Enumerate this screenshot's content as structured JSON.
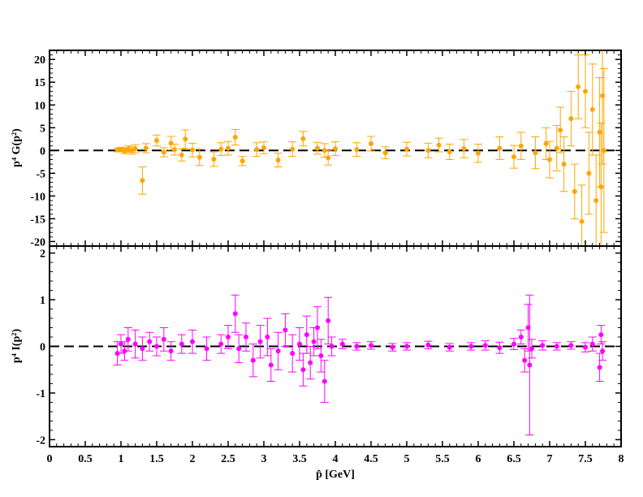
{
  "chart_data": [
    {
      "type": "scatter",
      "title": "",
      "ylabel": "p⁴ G(p²)",
      "xlim": [
        0,
        8
      ],
      "ylim": [
        -21,
        22
      ],
      "xticks": [
        0,
        0.5,
        1,
        1.5,
        2,
        2.5,
        3,
        3.5,
        4,
        4.5,
        5,
        5.5,
        6,
        6.5,
        7,
        7.5,
        8
      ],
      "xtick_labels": [],
      "yticks": [
        -20,
        -15,
        -10,
        -5,
        0,
        5,
        10,
        15,
        20
      ],
      "ytick_labels": [
        "-20",
        "-15",
        "-10",
        "-5",
        "0",
        "5",
        "10",
        "15",
        "20"
      ],
      "reference_line": {
        "y": 0,
        "style": "dashed",
        "color": "#000000"
      },
      "series": [
        {
          "color": "#ffa500",
          "points": [
            [
              0.95,
              0.1,
              0.4
            ],
            [
              1.0,
              0.2,
              0.5
            ],
            [
              1.05,
              -0.1,
              0.6
            ],
            [
              1.1,
              0.3,
              0.7
            ],
            [
              1.15,
              0.0,
              0.8
            ],
            [
              1.2,
              0.4,
              0.9
            ],
            [
              1.3,
              -6.6,
              3.0
            ],
            [
              1.35,
              0.5,
              1.0
            ],
            [
              1.5,
              2.2,
              1.2
            ],
            [
              1.6,
              -0.4,
              1.0
            ],
            [
              1.7,
              1.6,
              1.5
            ],
            [
              1.75,
              0.2,
              1.2
            ],
            [
              1.85,
              -1.0,
              1.3
            ],
            [
              1.9,
              2.5,
              2.0
            ],
            [
              2.0,
              0.1,
              1.5
            ],
            [
              2.1,
              -1.5,
              1.8
            ],
            [
              2.3,
              -1.9,
              1.6
            ],
            [
              2.4,
              0.3,
              1.4
            ],
            [
              2.5,
              0.5,
              1.5
            ],
            [
              2.6,
              2.9,
              1.7
            ],
            [
              2.7,
              -2.3,
              1.0
            ],
            [
              2.9,
              0.2,
              1.5
            ],
            [
              3.0,
              0.6,
              1.3
            ],
            [
              3.2,
              -2.1,
              1.5
            ],
            [
              3.4,
              0.3,
              1.6
            ],
            [
              3.55,
              2.6,
              1.6
            ],
            [
              3.75,
              0.5,
              1.3
            ],
            [
              3.85,
              0.0,
              1.5
            ],
            [
              3.9,
              -1.6,
              1.6
            ],
            [
              4.0,
              0.4,
              1.5
            ],
            [
              4.3,
              0.2,
              1.5
            ],
            [
              4.5,
              1.5,
              1.6
            ],
            [
              4.7,
              -0.5,
              1.3
            ],
            [
              5.0,
              0.3,
              1.5
            ],
            [
              5.3,
              0.0,
              1.6
            ],
            [
              5.45,
              1.2,
              1.5
            ],
            [
              5.6,
              -0.3,
              1.7
            ],
            [
              5.8,
              0.4,
              2.0
            ],
            [
              6.0,
              -0.6,
              2.0
            ],
            [
              6.3,
              0.5,
              2.5
            ],
            [
              6.5,
              -1.4,
              2.5
            ],
            [
              6.6,
              1.0,
              3.0
            ],
            [
              6.8,
              -0.5,
              3.5
            ],
            [
              6.95,
              1.5,
              3.5
            ],
            [
              7.0,
              -2.0,
              4.0
            ],
            [
              7.1,
              0.5,
              5.0
            ],
            [
              7.15,
              4.5,
              5.0
            ],
            [
              7.2,
              -3.0,
              6.0
            ],
            [
              7.3,
              7.0,
              6.0
            ],
            [
              7.35,
              -9.0,
              6.0
            ],
            [
              7.4,
              14.0,
              7.0
            ],
            [
              7.45,
              -15.6,
              8.0
            ],
            [
              7.5,
              13.0,
              8.0
            ],
            [
              7.55,
              -5.0,
              9.0
            ],
            [
              7.6,
              9.0,
              10.0
            ],
            [
              7.65,
              -11.0,
              10.0
            ],
            [
              7.7,
              4.0,
              12.0
            ],
            [
              7.72,
              -8.0,
              14.0
            ],
            [
              7.74,
              12.0,
              15.0
            ],
            [
              7.76,
              0.0,
              18.0
            ]
          ]
        }
      ]
    },
    {
      "type": "scatter",
      "title": "",
      "xlabel": "p̂ [GeV]",
      "ylabel": "p⁴ I(p²)",
      "xlim": [
        0,
        8
      ],
      "ylim": [
        -2.15,
        2.15
      ],
      "xticks": [
        0,
        0.5,
        1,
        1.5,
        2,
        2.5,
        3,
        3.5,
        4,
        4.5,
        5,
        5.5,
        6,
        6.5,
        7,
        7.5,
        8
      ],
      "xtick_labels": [
        "0",
        "0.5",
        "1",
        "1.5",
        "2",
        "2.5",
        "3",
        "3.5",
        "4",
        "4.5",
        "5",
        "5.5",
        "6",
        "6.5",
        "7",
        "7.5",
        "8"
      ],
      "yticks": [
        -2,
        -1,
        0,
        1,
        2
      ],
      "ytick_labels": [
        "-2",
        "-1",
        "0",
        "1",
        "2"
      ],
      "reference_line": {
        "y": 0,
        "style": "dashed",
        "color": "#000000"
      },
      "series": [
        {
          "color": "#ff00ff",
          "points": [
            [
              0.95,
              -0.15,
              0.25
            ],
            [
              1.0,
              0.05,
              0.2
            ],
            [
              1.05,
              -0.1,
              0.2
            ],
            [
              1.1,
              0.15,
              0.25
            ],
            [
              1.2,
              0.05,
              0.3
            ],
            [
              1.3,
              -0.05,
              0.25
            ],
            [
              1.4,
              0.1,
              0.2
            ],
            [
              1.5,
              0.0,
              0.2
            ],
            [
              1.6,
              0.15,
              0.25
            ],
            [
              1.7,
              -0.1,
              0.2
            ],
            [
              1.85,
              0.05,
              0.2
            ],
            [
              2.0,
              0.1,
              0.25
            ],
            [
              2.2,
              -0.05,
              0.25
            ],
            [
              2.4,
              0.05,
              0.2
            ],
            [
              2.5,
              0.2,
              0.25
            ],
            [
              2.6,
              0.7,
              0.4
            ],
            [
              2.65,
              -0.05,
              0.3
            ],
            [
              2.75,
              0.2,
              0.3
            ],
            [
              2.85,
              -0.3,
              0.35
            ],
            [
              2.95,
              0.1,
              0.35
            ],
            [
              3.05,
              0.2,
              0.4
            ],
            [
              3.1,
              -0.4,
              0.35
            ],
            [
              3.2,
              -0.1,
              0.4
            ],
            [
              3.3,
              0.35,
              0.35
            ],
            [
              3.4,
              -0.15,
              0.4
            ],
            [
              3.5,
              0.05,
              0.35
            ],
            [
              3.55,
              -0.5,
              0.35
            ],
            [
              3.6,
              0.25,
              0.4
            ],
            [
              3.65,
              -0.35,
              0.35
            ],
            [
              3.7,
              0.1,
              0.3
            ],
            [
              3.75,
              0.4,
              0.45
            ],
            [
              3.8,
              -0.2,
              0.35
            ],
            [
              3.85,
              -0.75,
              0.45
            ],
            [
              3.9,
              0.55,
              0.5
            ],
            [
              3.95,
              0.0,
              0.2
            ],
            [
              4.1,
              0.05,
              0.1
            ],
            [
              4.3,
              0.0,
              0.08
            ],
            [
              4.5,
              0.02,
              0.08
            ],
            [
              4.8,
              -0.02,
              0.08
            ],
            [
              5.0,
              0.0,
              0.08
            ],
            [
              5.3,
              0.03,
              0.08
            ],
            [
              5.6,
              -0.02,
              0.08
            ],
            [
              5.9,
              0.0,
              0.08
            ],
            [
              6.1,
              0.02,
              0.1
            ],
            [
              6.3,
              -0.03,
              0.12
            ],
            [
              6.5,
              0.05,
              0.12
            ],
            [
              6.6,
              0.2,
              0.15
            ],
            [
              6.65,
              -0.3,
              0.25
            ],
            [
              6.7,
              0.4,
              0.5
            ],
            [
              6.72,
              -0.4,
              1.5
            ],
            [
              6.75,
              -0.05,
              0.2
            ],
            [
              6.9,
              0.02,
              0.1
            ],
            [
              7.1,
              0.0,
              0.08
            ],
            [
              7.3,
              0.02,
              0.08
            ],
            [
              7.5,
              -0.02,
              0.1
            ],
            [
              7.6,
              0.05,
              0.15
            ],
            [
              7.7,
              -0.45,
              0.3
            ],
            [
              7.72,
              0.25,
              0.2
            ],
            [
              7.74,
              -0.1,
              0.2
            ]
          ]
        }
      ]
    }
  ]
}
